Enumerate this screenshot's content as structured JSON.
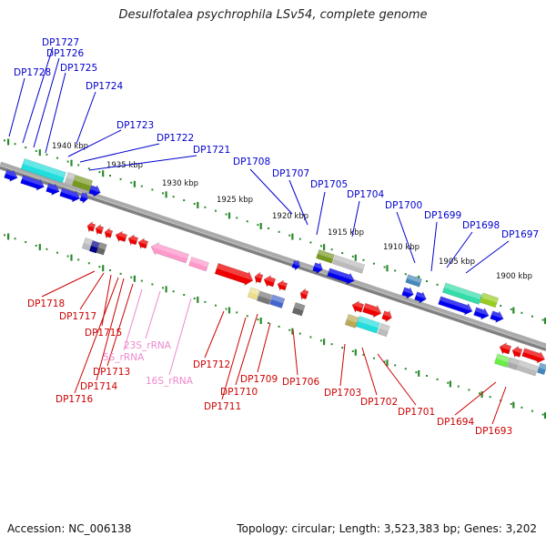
{
  "title": "Desulfotalea psychrophila LSv54, complete genome",
  "footer": {
    "accession": "Accession: NC_006138",
    "topology": "Topology: circular; Length: 3,523,383 bp; Genes: 3,202"
  },
  "colors": {
    "upper_label": "#0000cc",
    "lower_label": "#cc0000",
    "rrna_label": "#ee88cc",
    "backbone": "#808080",
    "tick": "#2a8a2a"
  },
  "kbp_labels": [
    "1940 kbp",
    "1935 kbp",
    "1930 kbp",
    "1925 kbp",
    "1920 kbp",
    "1915 kbp",
    "1910 kbp",
    "1905 kbp",
    "1900 kbp"
  ],
  "upper_labels": [
    "DP1728",
    "DP1727",
    "DP1726",
    "DP1725",
    "DP1724",
    "DP1723",
    "DP1722",
    "DP1721",
    "DP1708",
    "DP1707",
    "DP1705",
    "DP1704",
    "DP1700",
    "DP1699",
    "DP1698",
    "DP1697"
  ],
  "lower_labels": [
    "DP1718",
    "DP1717",
    "DP1715",
    "DP1713",
    "DP1714",
    "DP1716",
    "DP1712",
    "DP1711",
    "DP1710",
    "DP1709",
    "DP1706",
    "DP1703",
    "DP1702",
    "DP1701",
    "DP1694",
    "DP1693"
  ],
  "rrna_labels": [
    "23S_rRNA",
    "5S_rRNA",
    "16S_rRNA"
  ]
}
